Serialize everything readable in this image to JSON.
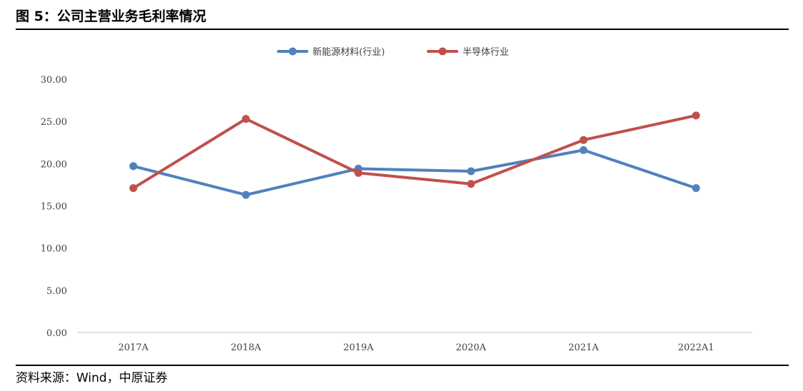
{
  "figure": {
    "header": "图 5：公司主营业务毛利率情况",
    "source": "资料来源：Wind，中原证券"
  },
  "colors": {
    "series_1": "#4f81bd",
    "series_2": "#c0504d",
    "axis": "#d9d9d9",
    "tick_text": "#404040"
  },
  "chart_data": {
    "type": "line",
    "title": "",
    "xlabel": "",
    "ylabel": "",
    "categories": [
      "2017A",
      "2018A",
      "2019A",
      "2020A",
      "2021A",
      "2022A1"
    ],
    "yticks": [
      "0.00",
      "5.00",
      "10.00",
      "15.00",
      "20.00",
      "25.00",
      "30.00"
    ],
    "ylim": [
      0,
      30
    ],
    "grid": false,
    "legend_position": "top-center",
    "series": [
      {
        "name": "新能源材料(行业)",
        "color": "#4f81bd",
        "values": [
          19.7,
          16.3,
          19.4,
          19.1,
          21.6,
          17.1
        ]
      },
      {
        "name": "半导体行业",
        "color": "#c0504d",
        "values": [
          17.1,
          25.3,
          18.9,
          17.6,
          22.8,
          25.7
        ]
      }
    ]
  }
}
